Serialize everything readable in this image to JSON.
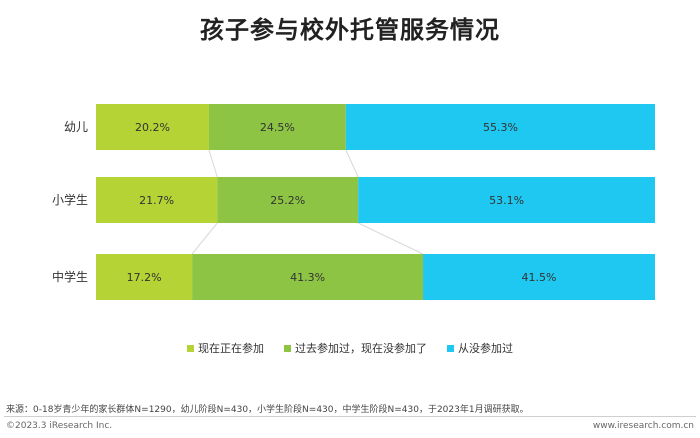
{
  "title": "孩子参与校外托管服务情况",
  "chart_data": {
    "type": "bar",
    "orientation": "horizontal",
    "stacked": "percent",
    "categories": [
      "幼儿",
      "小学生",
      "中学生"
    ],
    "series": [
      {
        "name": "现在正在参加",
        "color": "#b5d334",
        "values": [
          20.2,
          21.7,
          17.2
        ],
        "labels": [
          "20.2%",
          "21.7%",
          "17.2%"
        ]
      },
      {
        "name": "过去参加过，现在没参加了",
        "color": "#8dc444",
        "values": [
          24.5,
          25.2,
          41.3
        ],
        "labels": [
          "24.5%",
          "25.2%",
          "41.3%"
        ]
      },
      {
        "name": "从没参加过",
        "color": "#1fc8f0",
        "values": [
          55.3,
          53.1,
          41.5
        ],
        "labels": [
          "55.3%",
          "53.1%",
          "41.5%"
        ]
      }
    ],
    "xlim": [
      0,
      100
    ],
    "legend": "bottom",
    "grid": false
  },
  "footer": {
    "source": "来源：0-18岁青少年的家长群体N=1290，幼儿阶段N=430，小学生阶段N=430，中学生阶段N=430，于2023年1月调研获取。",
    "copyright": "©2023.3 iResearch Inc.",
    "website": "www.iresearch.com.cn"
  }
}
